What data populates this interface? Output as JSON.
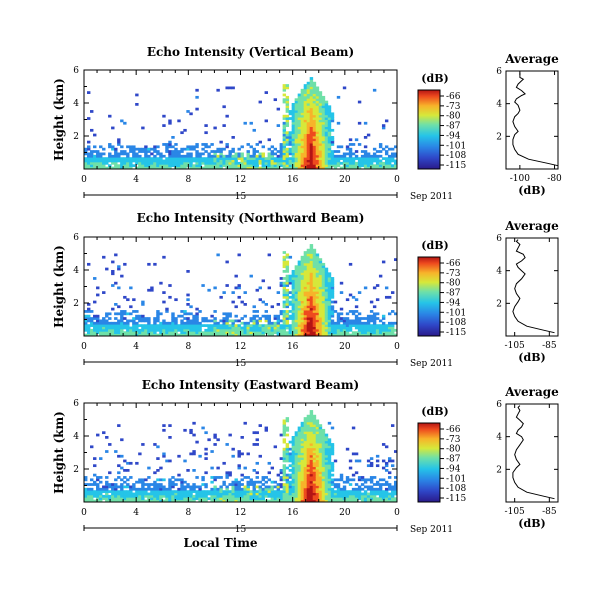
{
  "chart_data": [
    {
      "type": "heatmap",
      "title": "Echo Intensity (Vertical Beam)",
      "ylabel": "Height (km)",
      "x_ticks": [
        "0",
        "4",
        "8",
        "12",
        "16",
        "20",
        "0"
      ],
      "y_ticks": [
        "2",
        "4",
        "6"
      ],
      "xlim": [
        0,
        24
      ],
      "ylim": [
        0,
        6
      ],
      "date_label": "15",
      "date_suffix": "Sep 2011",
      "colorbar": {
        "unit": "(dB)",
        "ticks": [
          "-66",
          "-73",
          "-80",
          "-87",
          "-94",
          "-101",
          "-108",
          "-115"
        ]
      },
      "grid": false
    },
    {
      "type": "line",
      "title": "Average",
      "xlabel": "(dB)",
      "x_ticks": [
        "-100",
        "-80"
      ],
      "xlim": [
        -108,
        -78
      ],
      "y_ticks": [
        "2",
        "4",
        "6"
      ],
      "ylim": [
        0,
        6
      ],
      "series": [
        {
          "x": [
            -78,
            -84,
            -95,
            -101,
            -103,
            -104,
            -104,
            -103,
            -101,
            -103,
            -104,
            -103,
            -101,
            -100,
            -101,
            -103,
            -102,
            -99,
            -97,
            -99,
            -102,
            -101,
            -99,
            -98,
            -100,
            -100,
            -100
          ],
          "y": [
            0.2,
            0.35,
            0.6,
            0.9,
            1.2,
            1.5,
            1.8,
            2.1,
            2.3,
            2.6,
            2.9,
            3.2,
            3.4,
            3.6,
            3.9,
            4.1,
            4.3,
            4.5,
            4.6,
            4.8,
            5.0,
            5.2,
            5.4,
            5.5,
            5.6,
            5.8,
            5.9
          ]
        }
      ]
    },
    {
      "type": "heatmap",
      "title": "Echo Intensity (Northward Beam)",
      "ylabel": "Height (km)",
      "x_ticks": [
        "0",
        "4",
        "8",
        "12",
        "16",
        "20",
        "0"
      ],
      "y_ticks": [
        "2",
        "4",
        "6"
      ],
      "xlim": [
        0,
        24
      ],
      "ylim": [
        0,
        6
      ],
      "date_label": "15",
      "date_suffix": "Sep 2011",
      "colorbar": {
        "unit": "(dB)",
        "ticks": [
          "-66",
          "-73",
          "-80",
          "-87",
          "-94",
          "-101",
          "-108",
          "-115"
        ]
      },
      "grid": false
    },
    {
      "type": "line",
      "title": "Average",
      "xlabel": "(dB)",
      "x_ticks": [
        "-105",
        "-85"
      ],
      "xlim": [
        -110,
        -80
      ],
      "y_ticks": [
        "2",
        "4",
        "6"
      ],
      "ylim": [
        0,
        6
      ],
      "series": [
        {
          "x": [
            -82,
            -88,
            -98,
            -103,
            -105,
            -106,
            -105,
            -103,
            -102,
            -104,
            -105,
            -104,
            -101,
            -99,
            -101,
            -103,
            -104,
            -101,
            -99,
            -100,
            -104,
            -103,
            -102,
            -104,
            -103
          ],
          "y": [
            0.2,
            0.35,
            0.6,
            0.9,
            1.2,
            1.5,
            1.8,
            2.1,
            2.3,
            2.6,
            2.9,
            3.2,
            3.5,
            3.8,
            4.0,
            4.2,
            4.4,
            4.6,
            4.8,
            5.0,
            5.2,
            5.4,
            5.6,
            5.8,
            5.9
          ]
        }
      ]
    },
    {
      "type": "heatmap",
      "title": "Echo Intensity (Eastward Beam)",
      "ylabel": "Height (km)",
      "xlabel": "Local Time",
      "x_ticks": [
        "0",
        "4",
        "8",
        "12",
        "16",
        "20",
        "0"
      ],
      "y_ticks": [
        "2",
        "4",
        "6"
      ],
      "xlim": [
        0,
        24
      ],
      "ylim": [
        0,
        6
      ],
      "date_label": "15",
      "date_suffix": "Sep 2011",
      "colorbar": {
        "unit": "(dB)",
        "ticks": [
          "-66",
          "-73",
          "-80",
          "-87",
          "-94",
          "-101",
          "-108",
          "-115"
        ]
      },
      "grid": false
    },
    {
      "type": "line",
      "title": "Average",
      "xlabel": "(dB)",
      "x_ticks": [
        "-105",
        "-85"
      ],
      "xlim": [
        -110,
        -80
      ],
      "y_ticks": [
        "2",
        "4",
        "6"
      ],
      "ylim": [
        0,
        6
      ],
      "series": [
        {
          "x": [
            -82,
            -88,
            -98,
            -103,
            -105,
            -106,
            -106,
            -104,
            -102,
            -104,
            -105,
            -104,
            -102,
            -100,
            -101,
            -104,
            -103,
            -101,
            -100,
            -102,
            -104,
            -103,
            -102,
            -103,
            -102
          ],
          "y": [
            0.2,
            0.35,
            0.6,
            0.9,
            1.2,
            1.5,
            1.8,
            2.1,
            2.3,
            2.6,
            2.9,
            3.2,
            3.5,
            3.8,
            4.0,
            4.2,
            4.4,
            4.6,
            4.8,
            5.0,
            5.2,
            5.4,
            5.6,
            5.8,
            5.9
          ]
        }
      ]
    }
  ]
}
